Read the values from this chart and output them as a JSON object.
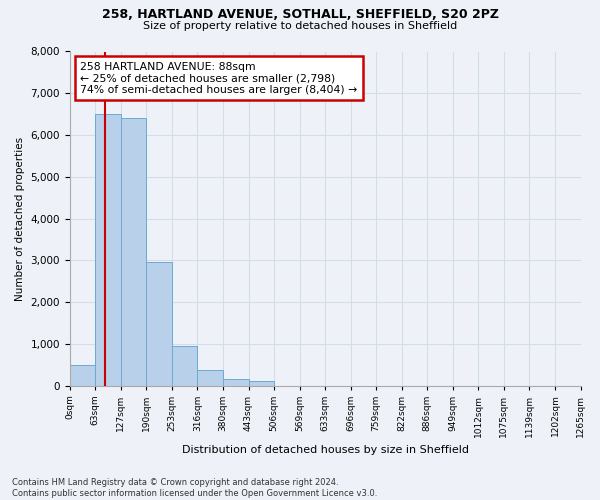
{
  "title_line1": "258, HARTLAND AVENUE, SOTHALL, SHEFFIELD, S20 2PZ",
  "title_line2": "Size of property relative to detached houses in Sheffield",
  "xlabel": "Distribution of detached houses by size in Sheffield",
  "ylabel": "Number of detached properties",
  "footnote": "Contains HM Land Registry data © Crown copyright and database right 2024.\nContains public sector information licensed under the Open Government Licence v3.0.",
  "bin_labels": [
    "0sqm",
    "63sqm",
    "127sqm",
    "190sqm",
    "253sqm",
    "316sqm",
    "380sqm",
    "443sqm",
    "506sqm",
    "569sqm",
    "633sqm",
    "696sqm",
    "759sqm",
    "822sqm",
    "886sqm",
    "949sqm",
    "1012sqm",
    "1075sqm",
    "1139sqm",
    "1202sqm",
    "1265sqm"
  ],
  "bar_heights": [
    490,
    6500,
    6400,
    2950,
    950,
    380,
    150,
    100,
    0,
    0,
    0,
    0,
    0,
    0,
    0,
    0,
    0,
    0,
    0,
    0
  ],
  "bar_color": "#b8d0ea",
  "bar_edge_color": "#6aaad4",
  "vline_x": 1.39,
  "vline_color": "#cc0000",
  "annotation_text": "258 HARTLAND AVENUE: 88sqm\n← 25% of detached houses are smaller (2,798)\n74% of semi-detached houses are larger (8,404) →",
  "annotation_box_color": "#ffffff",
  "annotation_border_color": "#cc0000",
  "ylim": [
    0,
    8000
  ],
  "yticks": [
    0,
    1000,
    2000,
    3000,
    4000,
    5000,
    6000,
    7000,
    8000
  ],
  "grid_color": "#d4dce8",
  "background_color": "#eef2f8"
}
